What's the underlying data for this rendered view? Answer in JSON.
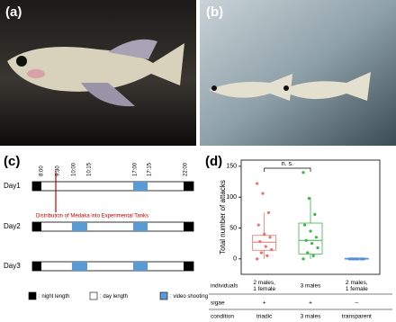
{
  "panels": {
    "a": "(a)",
    "b": "(b)",
    "c": "(c)",
    "d": "(d)"
  },
  "timeline": {
    "times": [
      "8:00",
      "9:30",
      "10:00",
      "10:15",
      "17:00",
      "17:15",
      "22:00"
    ],
    "days": [
      "Day1",
      "Day2",
      "Day3"
    ],
    "annotation": "Distribution of Medaka into Experimental Tanks",
    "legend": [
      ": night length",
      ": day length",
      ": video shooting"
    ]
  },
  "chart_data": {
    "type": "box",
    "ylabel": "Total number of attacks",
    "ylim": [
      -25,
      160
    ],
    "yticks": [
      0,
      50,
      100,
      150
    ],
    "annotation": "n. s.",
    "series": [
      {
        "color": "#e8736c",
        "whisker_low": 0,
        "q1": 14,
        "median": 27,
        "q3": 38,
        "whisker_high": 75,
        "points": [
          122,
          106,
          75,
          55,
          40,
          35,
          28,
          20,
          15,
          10,
          5,
          0
        ]
      },
      {
        "color": "#3cb34a",
        "whisker_low": 0,
        "q1": 8,
        "median": 30,
        "q3": 58,
        "whisker_high": 100,
        "points": [
          140,
          98,
          72,
          55,
          45,
          35,
          30,
          25,
          18,
          10,
          5,
          0
        ]
      },
      {
        "color": "#5b8fd6",
        "whisker_low": 0,
        "q1": 0,
        "median": 0,
        "q3": 1,
        "whisker_high": 1,
        "points": [
          0,
          0,
          0,
          0,
          0,
          0,
          0,
          0,
          0,
          0
        ]
      }
    ],
    "table": {
      "row_labels": [
        "individuals",
        "sigae",
        "condition"
      ],
      "rows": [
        [
          [
            "2 males,",
            "1 female"
          ],
          [
            "3 males"
          ],
          [
            "2 males,",
            "1 female"
          ]
        ],
        [
          "+",
          "+",
          "–"
        ],
        [
          "triadic",
          "3 males",
          "transparent"
        ]
      ]
    }
  }
}
